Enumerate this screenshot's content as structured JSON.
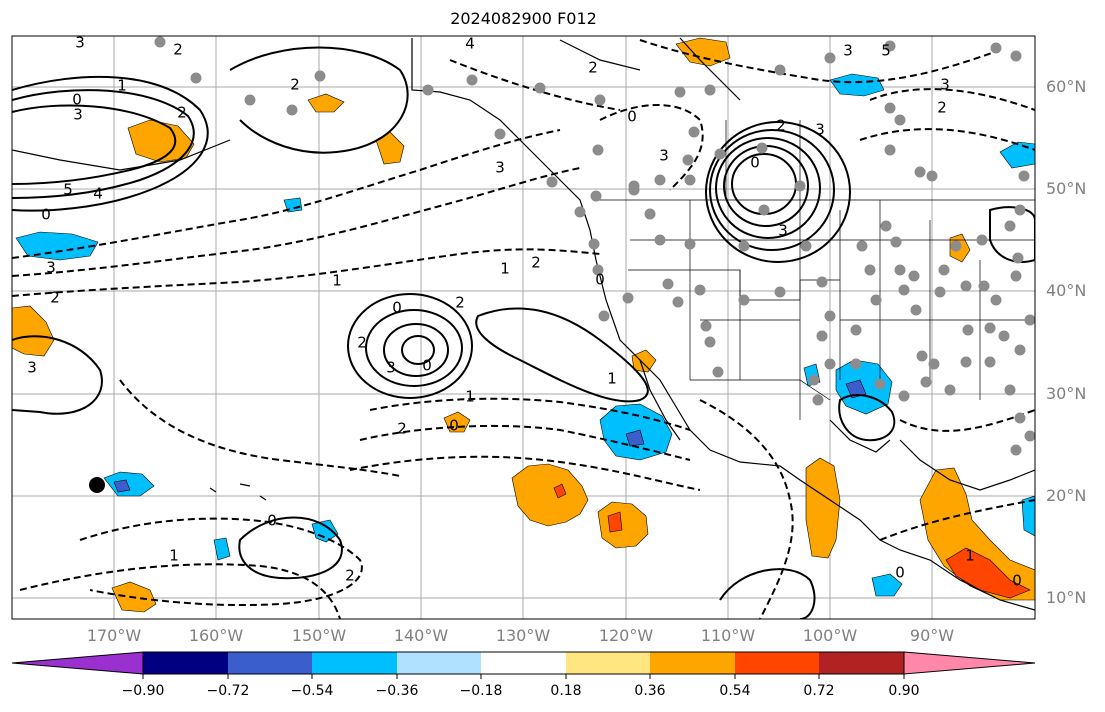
{
  "title": "2024082900 F012",
  "lat_labels": [
    "60°N",
    "50°N",
    "40°N",
    "30°N",
    "20°N",
    "10°N"
  ],
  "lon_labels": [
    "170°W",
    "160°W",
    "150°W",
    "140°W",
    "130°W",
    "120°W",
    "110°W",
    "100°W",
    "90°W"
  ],
  "contour_labels": [
    "3",
    "2",
    "1",
    "0",
    "3",
    "5",
    "4",
    "2",
    "0",
    "3",
    "2",
    "3",
    "2",
    "4",
    "3",
    "2",
    "3",
    "0",
    "3",
    "2",
    "3",
    "5",
    "2",
    "3",
    "3",
    "1",
    "2",
    "2",
    "0",
    "2",
    "3",
    "0",
    "1",
    "1",
    "2",
    "0",
    "1",
    "0",
    "2",
    "0",
    "1",
    "0",
    "0",
    "1",
    "0"
  ],
  "colorbar": {
    "tick_labels": [
      "−0.90",
      "−0.72",
      "−0.54",
      "−0.36",
      "−0.18",
      "0.18",
      "0.36",
      "0.54",
      "0.72",
      "0.90"
    ],
    "colors": [
      "#9b30d0",
      "#000080",
      "#3a5fcd",
      "#00bfff",
      "#b0e2ff",
      "#ffffff",
      "#ffe680",
      "#ffa500",
      "#ff4500",
      "#b22222",
      "#ff88aa"
    ]
  },
  "station_marker": "black-dot"
}
